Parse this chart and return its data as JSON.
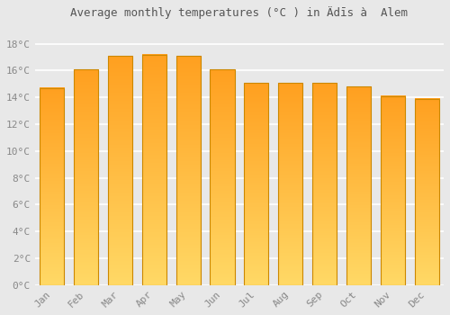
{
  "title": "Average monthly temperatures (°C ) in Ädīs à  Alem",
  "months": [
    "Jan",
    "Feb",
    "Mar",
    "Apr",
    "May",
    "Jun",
    "Jul",
    "Aug",
    "Sep",
    "Oct",
    "Nov",
    "Dec"
  ],
  "values": [
    14.7,
    16.1,
    17.1,
    17.2,
    17.1,
    16.1,
    15.1,
    15.1,
    15.1,
    14.8,
    14.1,
    13.9
  ],
  "bar_color_bottom": "#FFD966",
  "bar_color_top": "#FFA020",
  "bar_edge_color": "#CC8800",
  "yticks": [
    0,
    2,
    4,
    6,
    8,
    10,
    12,
    14,
    16,
    18
  ],
  "ytick_labels": [
    "0°C",
    "2°C",
    "4°C",
    "6°C",
    "8°C",
    "10°C",
    "12°C",
    "14°C",
    "16°C",
    "18°C"
  ],
  "ylim": [
    0,
    19.5
  ],
  "background_color": "#e8e8e8",
  "grid_color": "#ffffff",
  "title_fontsize": 9,
  "tick_fontsize": 8,
  "tick_color": "#888888",
  "title_color": "#555555"
}
